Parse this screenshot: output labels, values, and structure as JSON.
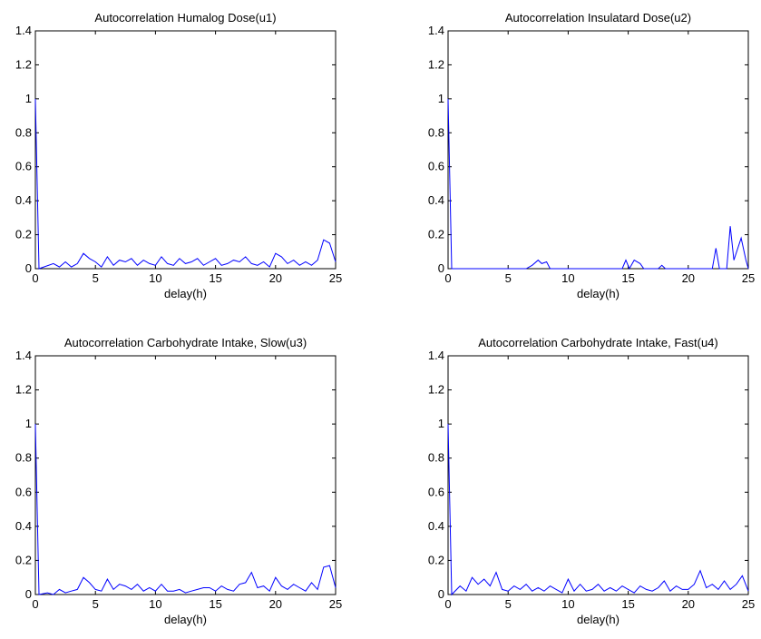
{
  "chart_data": [
    {
      "type": "line",
      "title": "Autocorrelation Humalog Dose(u1)",
      "xlabel": "delay(h)",
      "ylabel": "",
      "xlim": [
        0,
        25
      ],
      "ylim": [
        0,
        1.4
      ],
      "xticks": [
        0,
        5,
        10,
        15,
        20,
        25
      ],
      "yticks": [
        0,
        0.2,
        0.4,
        0.6,
        0.8,
        1,
        1.2,
        1.4
      ],
      "ytick_labels": [
        "0",
        "0.2",
        "0.4",
        "0.6",
        "0.8",
        "1",
        "1.2",
        "1.4"
      ],
      "line_color": "#0000ff",
      "grid": false,
      "series": [
        {
          "x": [
            0,
            0.3,
            1.5,
            2,
            2.5,
            3,
            3.5,
            4,
            4.5,
            5,
            5.5,
            6,
            6.5,
            7,
            7.5,
            8,
            8.5,
            9,
            9.5,
            10,
            10.5,
            11,
            11.5,
            12,
            12.5,
            13,
            13.5,
            14,
            14.5,
            15,
            15.5,
            16,
            16.5,
            17,
            17.5,
            18,
            18.5,
            19,
            19.5,
            20,
            20.5,
            21,
            21.5,
            22,
            22.5,
            23,
            23.5,
            24,
            24.5,
            25
          ],
          "y": [
            1.0,
            0.0,
            0.03,
            0.01,
            0.04,
            0.01,
            0.03,
            0.09,
            0.06,
            0.04,
            0.01,
            0.07,
            0.02,
            0.05,
            0.04,
            0.06,
            0.02,
            0.05,
            0.03,
            0.02,
            0.07,
            0.03,
            0.02,
            0.06,
            0.03,
            0.04,
            0.06,
            0.02,
            0.04,
            0.06,
            0.02,
            0.03,
            0.05,
            0.04,
            0.07,
            0.03,
            0.02,
            0.04,
            0.01,
            0.09,
            0.07,
            0.03,
            0.05,
            0.02,
            0.04,
            0.02,
            0.05,
            0.17,
            0.15,
            0.04
          ]
        }
      ]
    },
    {
      "type": "line",
      "title": "Autocorrelation Insulatard Dose(u2)",
      "xlabel": "delay(h)",
      "ylabel": "",
      "xlim": [
        0,
        25
      ],
      "ylim": [
        0,
        1.4
      ],
      "xticks": [
        0,
        5,
        10,
        15,
        20,
        25
      ],
      "yticks": [
        0,
        0.2,
        0.4,
        0.6,
        0.8,
        1,
        1.2,
        1.4
      ],
      "ytick_labels": [
        "0",
        "0.2",
        "0.4",
        "0.6",
        "0.8",
        "1",
        "1.2",
        "1.4"
      ],
      "line_color": "#0000ff",
      "grid": false,
      "series": [
        {
          "x": [
            0,
            0.3,
            6.5,
            7,
            7.5,
            7.8,
            8.2,
            8.5,
            14.5,
            14.8,
            15.1,
            15.5,
            16,
            16.3,
            17.5,
            17.8,
            18.1,
            22,
            22.3,
            22.6,
            23.2,
            23.5,
            23.8,
            24.4,
            24.8,
            25
          ],
          "y": [
            1.0,
            0.0,
            0.0,
            0.02,
            0.05,
            0.03,
            0.04,
            0.0,
            0.0,
            0.05,
            0.0,
            0.05,
            0.03,
            0.0,
            0.0,
            0.02,
            0.0,
            0.0,
            0.12,
            0.0,
            0.0,
            0.25,
            0.05,
            0.18,
            0.05,
            0.0
          ]
        }
      ]
    },
    {
      "type": "line",
      "title": "Autocorrelation Carbohydrate Intake, Slow(u3)",
      "xlabel": "delay(h)",
      "ylabel": "",
      "xlim": [
        0,
        25
      ],
      "ylim": [
        0,
        1.4
      ],
      "xticks": [
        0,
        5,
        10,
        15,
        20,
        25
      ],
      "yticks": [
        0,
        0.2,
        0.4,
        0.6,
        0.8,
        1,
        1.2,
        1.4
      ],
      "ytick_labels": [
        "0",
        "0.2",
        "0.4",
        "0.6",
        "0.8",
        "1",
        "1.2",
        "1.4"
      ],
      "line_color": "#0000ff",
      "grid": false,
      "series": [
        {
          "x": [
            0,
            0.3,
            1,
            1.5,
            2,
            2.5,
            3,
            3.5,
            4,
            4.5,
            5,
            5.5,
            6,
            6.5,
            7,
            7.5,
            8,
            8.5,
            9,
            9.5,
            10,
            10.5,
            11,
            11.5,
            12,
            12.5,
            13,
            13.5,
            14,
            14.5,
            15,
            15.5,
            16,
            16.5,
            17,
            17.5,
            18,
            18.5,
            19,
            19.5,
            20,
            20.5,
            21,
            21.5,
            22,
            22.5,
            23,
            23.5,
            24,
            24.5,
            25
          ],
          "y": [
            1.0,
            0.0,
            0.01,
            0.0,
            0.03,
            0.01,
            0.02,
            0.03,
            0.1,
            0.07,
            0.03,
            0.02,
            0.09,
            0.03,
            0.06,
            0.05,
            0.03,
            0.06,
            0.02,
            0.04,
            0.02,
            0.06,
            0.02,
            0.02,
            0.03,
            0.01,
            0.02,
            0.03,
            0.04,
            0.04,
            0.02,
            0.05,
            0.03,
            0.02,
            0.06,
            0.07,
            0.13,
            0.04,
            0.05,
            0.02,
            0.1,
            0.05,
            0.03,
            0.06,
            0.04,
            0.02,
            0.07,
            0.03,
            0.16,
            0.17,
            0.04
          ]
        }
      ]
    },
    {
      "type": "line",
      "title": "Autocorrelation Carbohydrate Intake, Fast(u4)",
      "xlabel": "delay(h)",
      "ylabel": "",
      "xlim": [
        0,
        25
      ],
      "ylim": [
        0,
        1.4
      ],
      "xticks": [
        0,
        5,
        10,
        15,
        20,
        25
      ],
      "yticks": [
        0,
        0.2,
        0.4,
        0.6,
        0.8,
        1,
        1.2,
        1.4
      ],
      "ytick_labels": [
        "0",
        "0.2",
        "0.4",
        "0.6",
        "0.8",
        "1",
        "1.2",
        "1.4"
      ],
      "line_color": "#0000ff",
      "grid": false,
      "series": [
        {
          "x": [
            0,
            0.3,
            1,
            1.5,
            2,
            2.5,
            3,
            3.5,
            4,
            4.5,
            5,
            5.5,
            6,
            6.5,
            7,
            7.5,
            8,
            8.5,
            9,
            9.5,
            10,
            10.5,
            11,
            11.5,
            12,
            12.5,
            13,
            13.5,
            14,
            14.5,
            15,
            15.5,
            16,
            16.5,
            17,
            17.5,
            18,
            18.5,
            19,
            19.5,
            20,
            20.5,
            21,
            21.5,
            22,
            22.5,
            23,
            23.5,
            24,
            24.5,
            25
          ],
          "y": [
            1.0,
            0.0,
            0.05,
            0.02,
            0.1,
            0.06,
            0.09,
            0.05,
            0.13,
            0.03,
            0.02,
            0.05,
            0.03,
            0.06,
            0.02,
            0.04,
            0.02,
            0.05,
            0.03,
            0.01,
            0.09,
            0.02,
            0.06,
            0.02,
            0.03,
            0.06,
            0.02,
            0.04,
            0.02,
            0.05,
            0.03,
            0.01,
            0.05,
            0.03,
            0.02,
            0.04,
            0.08,
            0.02,
            0.05,
            0.03,
            0.03,
            0.06,
            0.14,
            0.04,
            0.06,
            0.03,
            0.08,
            0.03,
            0.06,
            0.11,
            0.02
          ]
        }
      ]
    }
  ]
}
